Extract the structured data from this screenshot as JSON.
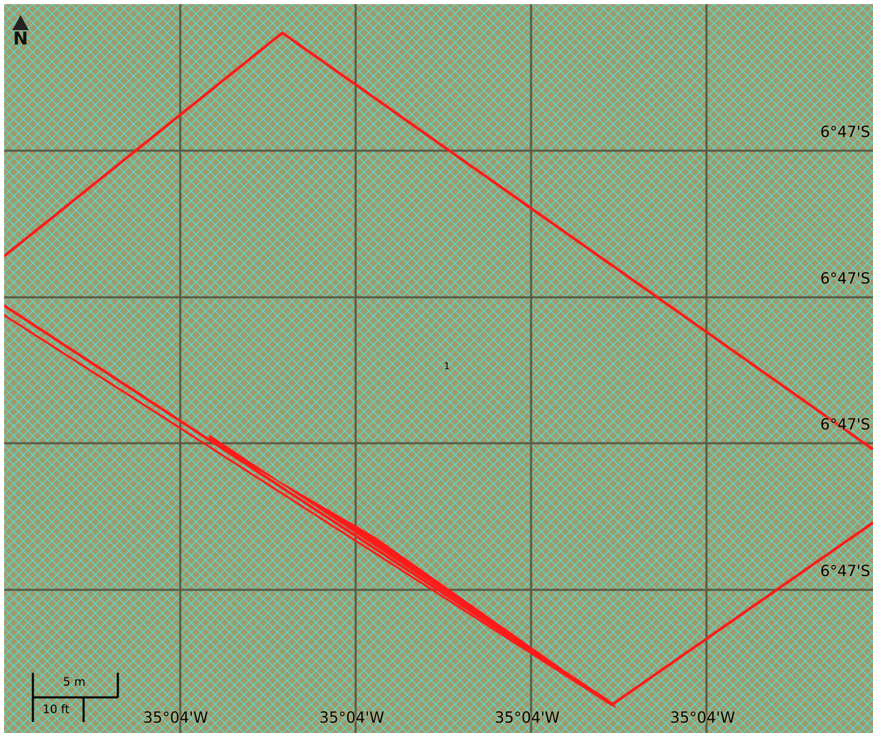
{
  "map": {
    "colors": {
      "land": "#a09a6c",
      "hatch": "#4fe3d6",
      "grid": "#514c3a",
      "boundary": "#ff1a1a"
    },
    "north_arrow": {
      "label": "N",
      "icon": "north-arrow-icon"
    },
    "scale_bar": {
      "metric_label": "5 m",
      "imperial_label": "10 ft"
    },
    "graticule": {
      "latitude_labels": [
        "6°47'S",
        "6°47'S",
        "6°47'S",
        "6°47'S"
      ],
      "longitude_labels": [
        "35°04'W",
        "35°04'W",
        "35°04'W",
        "35°04'W"
      ]
    },
    "feature_label": "1"
  }
}
